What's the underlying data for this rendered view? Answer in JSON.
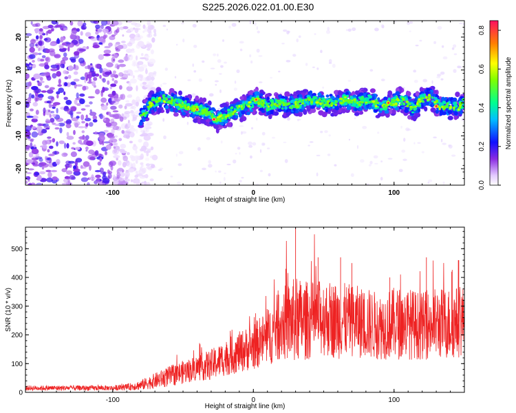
{
  "title": "S225.2026.022.01.00.E30",
  "chart_data": [
    {
      "type": "heatmap",
      "name": "spectrogram",
      "xlabel": "Height of straight line (km)",
      "ylabel": "Frequency (Hz)",
      "xlim": [
        -162,
        150
      ],
      "ylim": [
        -25,
        25
      ],
      "x_ticks": [
        -100,
        0,
        100
      ],
      "y_ticks": [
        -20,
        -10,
        0,
        10,
        20
      ],
      "colorbar": {
        "label": "Normalized spectral amplitude",
        "range": [
          0,
          0.85
        ],
        "ticks": [
          "0.0",
          "0.2",
          "0.4",
          "0.6",
          "0.8"
        ]
      },
      "noise_region_x": [
        -162,
        -80
      ],
      "signal_track": {
        "x": [
          -80,
          -72,
          -64,
          -56,
          -48,
          -40,
          -32,
          -26,
          -20,
          -12,
          -4,
          2,
          10,
          18,
          26,
          34,
          42,
          50,
          58,
          66,
          74,
          82,
          90,
          98,
          106,
          114,
          120,
          126,
          132,
          140,
          146,
          150
        ],
        "freq": [
          -4,
          0,
          1,
          0,
          -1,
          -2,
          -3,
          -5,
          -4,
          -2,
          -1,
          1,
          -1,
          0,
          -1,
          0,
          1,
          0,
          0,
          1,
          0,
          1,
          -1,
          0,
          1,
          -2,
          1,
          2,
          -1,
          -1,
          -1,
          0
        ]
      },
      "peak_points": [
        {
          "x": -40,
          "freq": -2,
          "amp": 0.8
        },
        {
          "x": -28,
          "freq": -5,
          "amp": 0.85
        },
        {
          "x": -10,
          "freq": -1,
          "amp": 0.6
        },
        {
          "x": 2,
          "freq": 1,
          "amp": 0.8
        },
        {
          "x": 28,
          "freq": -1,
          "amp": 0.5
        },
        {
          "x": 74,
          "freq": 0,
          "amp": 0.55
        },
        {
          "x": 96,
          "freq": 0,
          "amp": 0.8
        },
        {
          "x": 118,
          "freq": 1,
          "amp": 0.65
        },
        {
          "x": 130,
          "freq": -1,
          "amp": 0.85
        },
        {
          "x": 146,
          "freq": -2,
          "amp": 0.6
        }
      ]
    },
    {
      "type": "line",
      "name": "snr",
      "xlabel": "Height of straight line (km)",
      "ylabel": "SNR (10 * v/v)",
      "xlim": [
        -162,
        150
      ],
      "ylim": [
        0,
        575
      ],
      "x_ticks": [
        -100,
        0,
        100
      ],
      "y_ticks": [
        0,
        100,
        200,
        300,
        400,
        500
      ],
      "color": "#ee2222",
      "envelope": {
        "x": [
          -162,
          -140,
          -120,
          -100,
          -90,
          -80,
          -70,
          -60,
          -50,
          -40,
          -30,
          -20,
          -10,
          0,
          10,
          20,
          30,
          40,
          50,
          60,
          70,
          80,
          90,
          100,
          110,
          120,
          130,
          140,
          150
        ],
        "mean": [
          15,
          15,
          15,
          15,
          18,
          25,
          40,
          55,
          70,
          85,
          95,
          120,
          140,
          160,
          190,
          240,
          250,
          250,
          260,
          250,
          250,
          240,
          230,
          240,
          240,
          230,
          240,
          240,
          250
        ],
        "spread": [
          10,
          10,
          10,
          10,
          12,
          20,
          30,
          40,
          45,
          50,
          60,
          70,
          80,
          90,
          110,
          140,
          170,
          150,
          150,
          150,
          140,
          140,
          130,
          140,
          140,
          130,
          140,
          140,
          140
        ]
      },
      "spikes": [
        {
          "x": 30,
          "y": 575
        },
        {
          "x": 23,
          "y": 430
        },
        {
          "x": 18,
          "y": 340
        },
        {
          "x": 46,
          "y": 470
        },
        {
          "x": 62,
          "y": 470
        },
        {
          "x": 70,
          "y": 450
        },
        {
          "x": 123,
          "y": 470
        },
        {
          "x": 146,
          "y": 460
        },
        {
          "x": 97,
          "y": 400
        },
        {
          "x": 141,
          "y": 420
        }
      ]
    }
  ]
}
